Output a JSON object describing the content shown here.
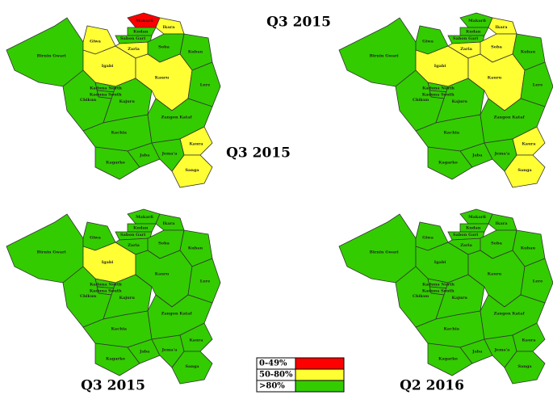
{
  "districts": [
    "Birnin Gwari",
    "Giwa",
    "Igabi",
    "Makarfi",
    "Ikara",
    "Kudan",
    "Sabon Gari",
    "Zaria",
    "Soba",
    "Kubau",
    "Kaduna North",
    "Kaduna South",
    "Chikun",
    "Kajuru",
    "Kauru",
    "Lere",
    "Kachia",
    "Zangon Kataf",
    "Kaura",
    "Kagarko",
    "Jaba",
    "Jema'a",
    "Sanga"
  ],
  "maps": [
    {
      "title": "Q3 2015",
      "colors": [
        "#33cc00",
        "#ffff33",
        "#ffff33",
        "#ff0000",
        "#ffff33",
        "#33cc00",
        "#33cc00",
        "#ffff33",
        "#33cc00",
        "#33cc00",
        "#33cc00",
        "#33cc00",
        "#33cc00",
        "#33cc00",
        "#ffff33",
        "#33cc00",
        "#33cc00",
        "#33cc00",
        "#ffff33",
        "#33cc00",
        "#33cc00",
        "#33cc00",
        "#ffff33"
      ]
    },
    {
      "title": "Q3 2015",
      "colors": [
        "#33cc00",
        "#33cc00",
        "#ffff33",
        "#33cc00",
        "#ffff33",
        "#33cc00",
        "#33cc00",
        "#ffff33",
        "#ffff33",
        "#33cc00",
        "#33cc00",
        "#33cc00",
        "#33cc00",
        "#33cc00",
        "#ffff33",
        "#33cc00",
        "#33cc00",
        "#33cc00",
        "#ffff33",
        "#33cc00",
        "#33cc00",
        "#33cc00",
        "#ffff33"
      ]
    },
    {
      "title": "Q3 2015",
      "colors": [
        "#33cc00",
        "#33cc00",
        "#ffff33",
        "#33cc00",
        "#33cc00",
        "#33cc00",
        "#33cc00",
        "#33cc00",
        "#33cc00",
        "#33cc00",
        "#33cc00",
        "#33cc00",
        "#33cc00",
        "#33cc00",
        "#33cc00",
        "#33cc00",
        "#33cc00",
        "#33cc00",
        "#33cc00",
        "#33cc00",
        "#33cc00",
        "#33cc00",
        "#33cc00"
      ]
    },
    {
      "title": "Q2 2016",
      "colors": [
        "#33cc00",
        "#33cc00",
        "#33cc00",
        "#33cc00",
        "#33cc00",
        "#33cc00",
        "#33cc00",
        "#33cc00",
        "#33cc00",
        "#33cc00",
        "#33cc00",
        "#33cc00",
        "#33cc00",
        "#33cc00",
        "#33cc00",
        "#33cc00",
        "#33cc00",
        "#33cc00",
        "#33cc00",
        "#33cc00",
        "#33cc00",
        "#33cc00",
        "#33cc00"
      ]
    }
  ],
  "legend": [
    {
      "label": "0-49%",
      "color": "#ff0000"
    },
    {
      "label": "50-80%",
      "color": "#ffff33"
    },
    {
      "label": ">80%",
      "color": "#33cc00"
    }
  ]
}
